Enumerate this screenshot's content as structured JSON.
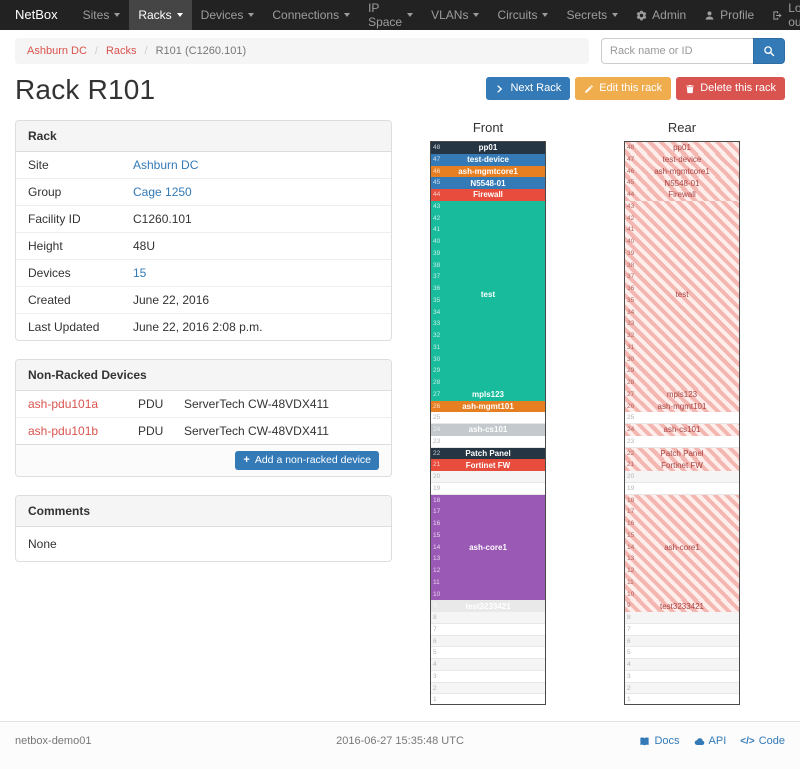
{
  "navbar": {
    "brand": "NetBox",
    "items": [
      {
        "label": "Sites"
      },
      {
        "label": "Racks",
        "active": true
      },
      {
        "label": "Devices"
      },
      {
        "label": "Connections"
      },
      {
        "label": "IP Space"
      },
      {
        "label": "VLANs"
      },
      {
        "label": "Circuits"
      },
      {
        "label": "Secrets"
      }
    ],
    "right": [
      {
        "label": "Admin",
        "icon": "gear"
      },
      {
        "label": "Profile",
        "icon": "user"
      },
      {
        "label": "Log out",
        "icon": "logout"
      }
    ]
  },
  "breadcrumb": {
    "items": [
      {
        "label": "Ashburn DC",
        "link": true
      },
      {
        "label": "Racks",
        "link": true
      },
      {
        "label": "R101 (C1260.101)",
        "link": false
      }
    ]
  },
  "search": {
    "placeholder": "Rack name or ID"
  },
  "page_title": "Rack R101",
  "actions": {
    "next": "Next Rack",
    "edit": "Edit this rack",
    "delete": "Delete this rack"
  },
  "rack_panel": {
    "title": "Rack",
    "rows": [
      {
        "label": "Site",
        "value": "Ashburn DC",
        "link": "blue"
      },
      {
        "label": "Group",
        "value": "Cage 1250",
        "link": "blue"
      },
      {
        "label": "Facility ID",
        "value": "C1260.101"
      },
      {
        "label": "Height",
        "value": "48U"
      },
      {
        "label": "Devices",
        "value": "15",
        "link": "blue"
      },
      {
        "label": "Created",
        "value": "June 22, 2016"
      },
      {
        "label": "Last Updated",
        "value": "June 22, 2016 2:08 p.m."
      }
    ]
  },
  "non_racked": {
    "title": "Non-Racked Devices",
    "rows": [
      {
        "name": "ash-pdu101a",
        "type": "PDU",
        "model": "ServerTech CW-48VDX411"
      },
      {
        "name": "ash-pdu101b",
        "type": "PDU",
        "model": "ServerTech CW-48VDX411"
      }
    ],
    "add_button": "Add a non-racked device"
  },
  "comments": {
    "title": "Comments",
    "body": "None"
  },
  "elevation": {
    "front_title": "Front",
    "rear_title": "Rear",
    "units": 48,
    "blocks": [
      {
        "unit": 48,
        "height": 1,
        "label": "pp01",
        "color": "#253544"
      },
      {
        "unit": 47,
        "height": 1,
        "label": "test-device",
        "color": "#337ab7"
      },
      {
        "unit": 46,
        "height": 1,
        "label": "ash-mgmtcore1",
        "color": "#e67e22"
      },
      {
        "unit": 45,
        "height": 1,
        "label": "N5548-01",
        "color": "#337ab7"
      },
      {
        "unit": 44,
        "height": 1,
        "label": "Firewall",
        "color": "#e74c3c"
      },
      {
        "unit": 43,
        "height": 16,
        "label": "test",
        "color": "#18bc9c"
      },
      {
        "unit": 27,
        "height": 1,
        "label": "mpls123",
        "color": "#18bc9c"
      },
      {
        "unit": 26,
        "height": 1,
        "label": "ash-mgmt101",
        "color": "#e67e22"
      },
      {
        "unit": 24,
        "height": 1,
        "label": "ash-cs101",
        "color": "#c3c9cc"
      },
      {
        "unit": 22,
        "height": 1,
        "label": "Patch Panel",
        "color": "#253544"
      },
      {
        "unit": 21,
        "height": 1,
        "label": "Fortinet FW",
        "color": "#e74c3c"
      },
      {
        "unit": 18,
        "height": 9,
        "label": "ash-core1",
        "color": "#9b59b6"
      },
      {
        "unit": 9,
        "height": 1,
        "label": "test3233421",
        "color": "#e9e9e9",
        "text_color": "#ffffff"
      }
    ]
  },
  "footer": {
    "hostname": "netbox-demo01",
    "timestamp": "2016-06-27 15:35:48 UTC",
    "links": [
      {
        "label": "Docs",
        "icon": "book"
      },
      {
        "label": "API",
        "icon": "cloud"
      },
      {
        "label": "Code",
        "icon": "code"
      }
    ]
  }
}
